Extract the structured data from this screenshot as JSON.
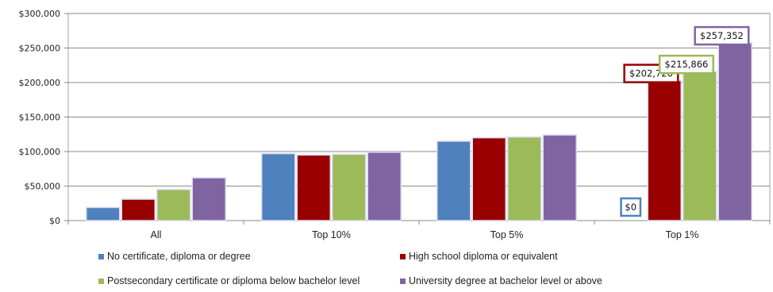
{
  "chart_data": {
    "type": "bar",
    "categories": [
      "All",
      "Top 10%",
      "Top 5%",
      "Top 1%"
    ],
    "yticks": [
      "$0",
      "$50,000",
      "$100,000",
      "$150,000",
      "$200,000",
      "$250,000",
      "$300,000"
    ],
    "ylim": [
      0,
      300000
    ],
    "grid": true,
    "legend_position": "bottom",
    "series": [
      {
        "name": "No certificate, diploma or degree",
        "color": "#4f81bd",
        "values": [
          19000,
          97000,
          115000,
          0
        ]
      },
      {
        "name": "High school diploma or equivalent",
        "color": "#990000",
        "values": [
          31000,
          95000,
          120000,
          202726
        ]
      },
      {
        "name": "Postsecondary certificate or diploma below bachelor level",
        "color": "#9bbb59",
        "values": [
          45000,
          96000,
          121000,
          215866
        ]
      },
      {
        "name": "University degree at bachelor level or above",
        "color": "#8064a2",
        "values": [
          62000,
          99000,
          124000,
          257352
        ]
      }
    ],
    "callouts": [
      {
        "series": 0,
        "category": 3,
        "label": "$0"
      },
      {
        "series": 1,
        "category": 3,
        "label": "$202,726"
      },
      {
        "series": 2,
        "category": 3,
        "label": "$215,866"
      },
      {
        "series": 3,
        "category": 3,
        "label": "$257,352"
      }
    ]
  }
}
